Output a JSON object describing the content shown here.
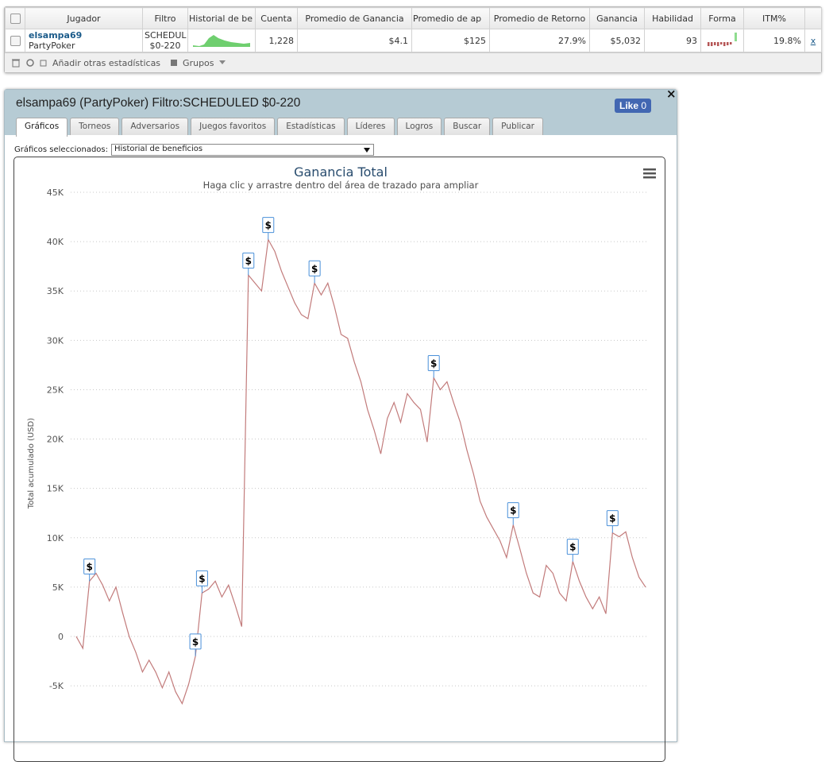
{
  "table": {
    "headers": [
      "Jugador",
      "Filtro",
      "Historial de be",
      "Cuenta",
      "Promedio de Ganancia",
      "Promedio de ap",
      "Promedio de Retorno",
      "Ganancia",
      "Habilidad",
      "Forma",
      "ITM%"
    ],
    "row": {
      "player": "elsampa69",
      "site": "PartyPoker",
      "filter": [
        "SCHEDUL",
        "$0-220"
      ],
      "count": "1,228",
      "avg_profit": "$4.1",
      "avg_stake": "$125",
      "roi": "27.9%",
      "profit": "$5,032",
      "ability": "93",
      "itm": "19.8%",
      "remove": "x"
    }
  },
  "toolbar": {
    "add_stats": "Añadir otras estadísticas",
    "groups": "Grupos"
  },
  "panel": {
    "title": "elsampa69 (PartyPoker) Filtro:SCHEDULED $0-220",
    "like": "Like",
    "like_count": "0",
    "close": "×",
    "tabs": [
      "Gráficos",
      "Torneos",
      "Adversarios",
      "Juegos favoritos",
      "Estadísticas",
      "Líderes",
      "Logros",
      "Buscar",
      "Publicar"
    ],
    "selected_label": "Gráficos seleccionados:",
    "selected_value": "Historial de beneficios"
  },
  "chart_data": {
    "type": "line",
    "title": "Ganancia Total",
    "subtitle": "Haga clic y arrastre dentro del área de trazado para ampliar",
    "y_label": "Total acumulado (USD)",
    "color": "#c27b7b",
    "grid": true,
    "ylim": [
      -10000,
      45000
    ],
    "yticks": [
      {
        "value": -5000,
        "label": "-5K"
      },
      0,
      {
        "value": 5000,
        "label": "5K"
      },
      {
        "value": 10000,
        "label": "10K"
      },
      {
        "value": 15000,
        "label": "15K"
      },
      {
        "value": 20000,
        "label": "20K"
      },
      {
        "value": 25000,
        "label": "25K"
      },
      {
        "value": 30000,
        "label": "30K"
      },
      {
        "value": 35000,
        "label": "35K"
      },
      {
        "value": 40000,
        "label": "40K"
      },
      {
        "value": 45000,
        "label": "45K"
      }
    ],
    "values": [
      0,
      -1200,
      5600,
      6400,
      5200,
      3600,
      5000,
      2400,
      0,
      -1600,
      -3600,
      -2400,
      -3600,
      -5200,
      -3600,
      -5600,
      -6800,
      -4800,
      -2000,
      4400,
      4800,
      5600,
      4000,
      5200,
      3200,
      1000,
      36600,
      35800,
      35000,
      40200,
      39000,
      37000,
      35400,
      33800,
      32600,
      32200,
      35800,
      34600,
      35800,
      33400,
      30600,
      30200,
      27800,
      25800,
      23000,
      20900,
      18500,
      22100,
      23700,
      21700,
      24600,
      23700,
      23000,
      19700,
      26200,
      25000,
      25800,
      23700,
      21700,
      18900,
      16500,
      13700,
      12100,
      10900,
      9700,
      8000,
      11300,
      8900,
      6400,
      4400,
      4000,
      7200,
      6400,
      4400,
      3600,
      7600,
      5600,
      4000,
      2800,
      4000,
      2300,
      10500,
      10100,
      10600,
      8000,
      6000,
      5000
    ],
    "flags": {
      "label": "$",
      "values": [
        null,
        null,
        5600,
        null,
        null,
        null,
        null,
        null,
        null,
        null,
        null,
        null,
        null,
        null,
        null,
        null,
        null,
        null,
        -2000,
        4400,
        null,
        null,
        null,
        null,
        null,
        null,
        36600,
        null,
        null,
        40200,
        null,
        null,
        null,
        null,
        null,
        null,
        35800,
        null,
        null,
        null,
        null,
        null,
        null,
        null,
        null,
        null,
        null,
        null,
        null,
        null,
        null,
        null,
        null,
        null,
        26200,
        null,
        null,
        null,
        null,
        null,
        null,
        null,
        null,
        null,
        null,
        null,
        11300,
        null,
        null,
        null,
        null,
        null,
        null,
        null,
        null,
        7600,
        null,
        null,
        null,
        null,
        null,
        10500,
        null,
        null,
        null,
        null,
        null
      ]
    }
  }
}
